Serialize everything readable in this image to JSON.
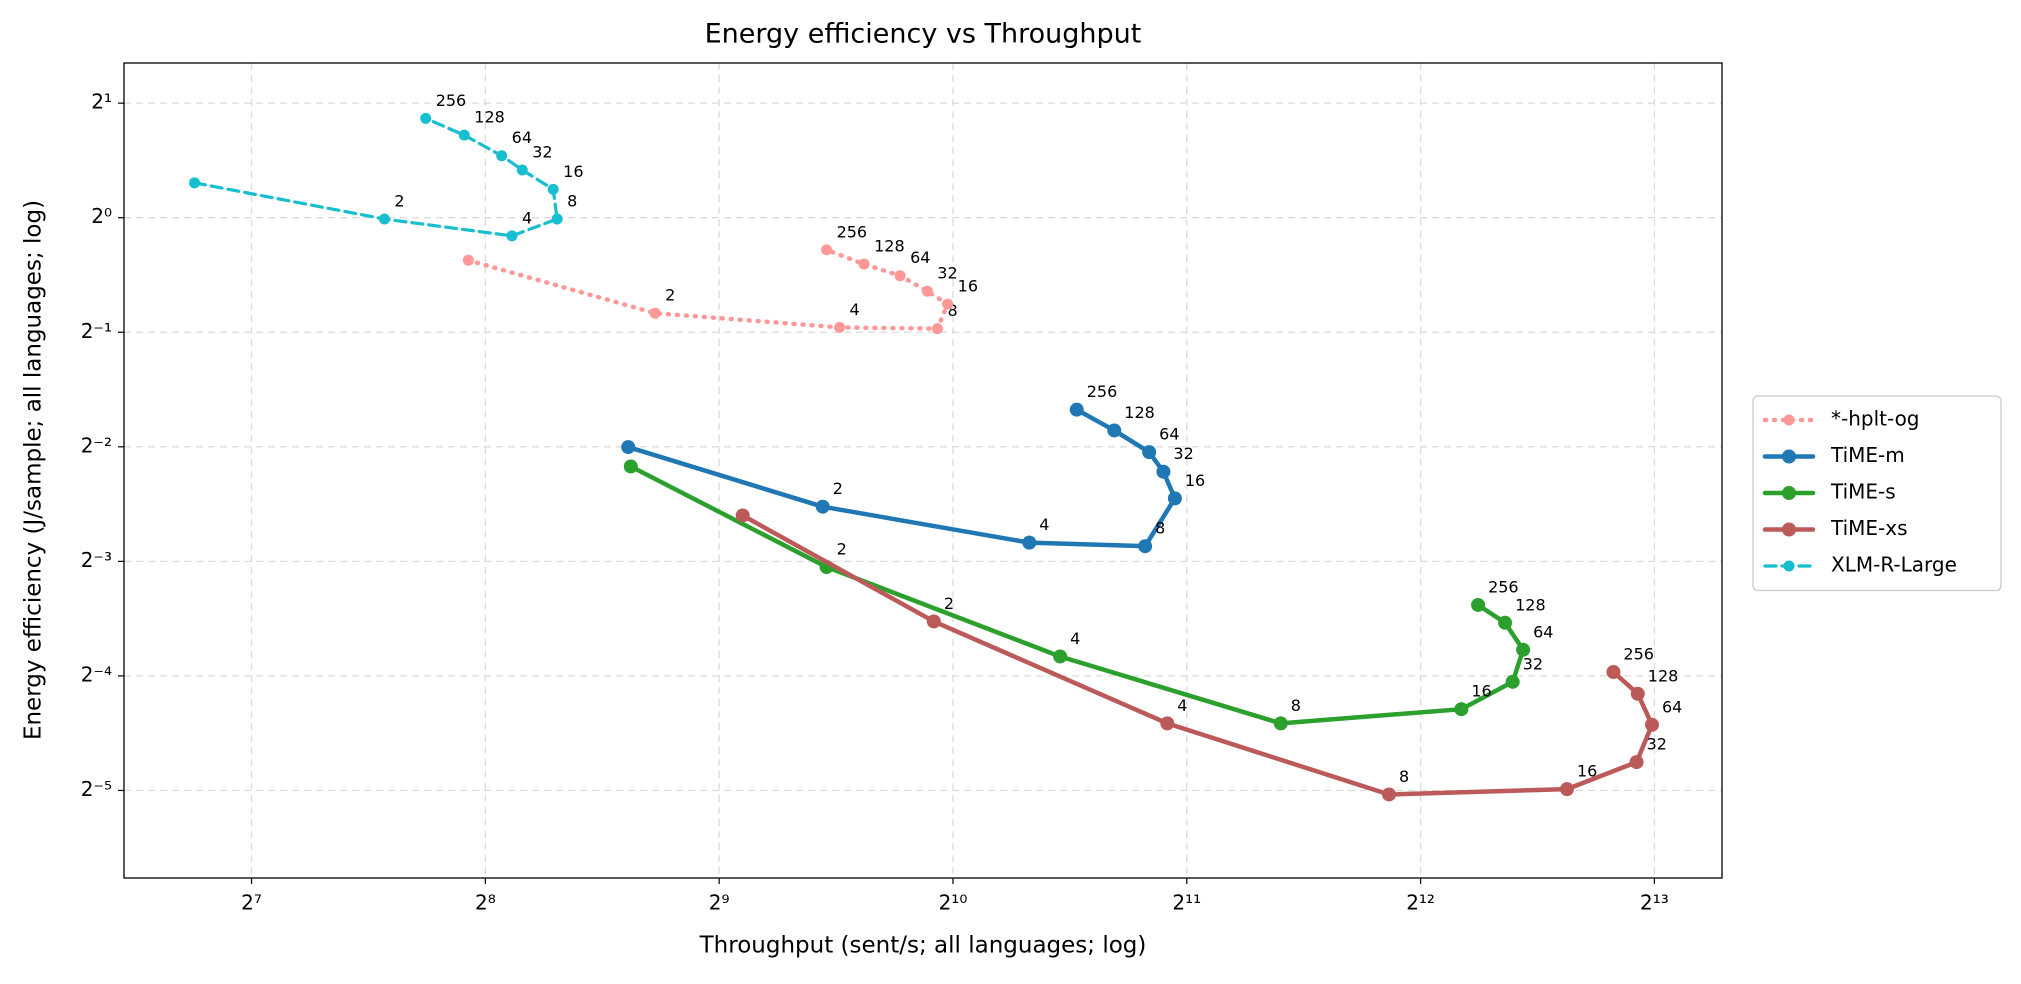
{
  "chart_data": {
    "type": "line",
    "title": "Energy efficiency vs Throughput",
    "x_label": "Throughput (sent/s; all languages; log)",
    "y_label": "Energy efficiency (J/sample; all languages; log)",
    "xscale": "log",
    "yscale": "log",
    "log_base": 2,
    "grid": true,
    "legend": "right",
    "xlim": [
      87.7,
      10010
    ],
    "ylim": [
      0.0184,
      2.55
    ],
    "xticks": [
      {
        "value": 128,
        "label": "2⁷"
      },
      {
        "value": 256,
        "label": "2⁸"
      },
      {
        "value": 512,
        "label": "2⁹"
      },
      {
        "value": 1024,
        "label": "2¹⁰"
      },
      {
        "value": 2048,
        "label": "2¹¹"
      },
      {
        "value": 4096,
        "label": "2¹²"
      },
      {
        "value": 8192,
        "label": "2¹³"
      }
    ],
    "yticks": [
      {
        "value": 2,
        "label": "2¹"
      },
      {
        "value": 1,
        "label": "2⁰"
      },
      {
        "value": 0.5,
        "label": "2⁻¹"
      },
      {
        "value": 0.25,
        "label": "2⁻²"
      },
      {
        "value": 0.125,
        "label": "2⁻³"
      },
      {
        "value": 0.0625,
        "label": "2⁻⁴"
      },
      {
        "value": 0.03125,
        "label": "2⁻⁵"
      }
    ],
    "series": [
      {
        "name": "*-hplt-og",
        "color": "#ff9896",
        "linestyle": "dotted",
        "x": [
          243.4,
          423.5,
          731.6,
          978,
          1008,
          949,
          875.5,
          786.8,
          704
        ],
        "values": [
          0.773,
          0.561,
          0.515,
          0.511,
          0.593,
          0.641,
          0.704,
          0.755,
          0.823
        ],
        "point_labels": [
          null,
          "2",
          "4",
          "8",
          "16",
          "32",
          "64",
          "128",
          "256"
        ]
      },
      {
        "name": "TiME-m",
        "color": "#1f77b4",
        "linestyle": "solid",
        "x": [
          391,
          696,
          1284,
          1810,
          1977,
          1911,
          1832,
          1652,
          1478
        ],
        "values": [
          0.2496,
          0.174,
          0.14,
          0.137,
          0.183,
          0.215,
          0.242,
          0.276,
          0.313
        ],
        "point_labels": [
          null,
          "2",
          "4",
          "8",
          "16",
          "32",
          "64",
          "128",
          "256"
        ]
      },
      {
        "name": "TiME-s",
        "color": "#2ca02c",
        "linestyle": "solid",
        "x": [
          394,
          704,
          1407,
          2706,
          4622,
          5382,
          5551,
          5262,
          4857
        ],
        "values": [
          0.222,
          0.1208,
          0.0703,
          0.0469,
          0.0511,
          0.0603,
          0.0732,
          0.0862,
          0.096
        ],
        "point_labels": [
          null,
          "2",
          "4",
          "8",
          "16",
          "32",
          "64",
          "128",
          "256"
        ]
      },
      {
        "name": "TiME-xs",
        "color": "#bc5a5a",
        "linestyle": "solid",
        "x": [
          549,
          967.5,
          1933,
          3730,
          6322,
          7771,
          8134,
          7798,
          7255
        ],
        "values": [
          0.165,
          0.0869,
          0.0469,
          0.0305,
          0.0315,
          0.0371,
          0.0465,
          0.0561,
          0.064
        ],
        "point_labels": [
          null,
          "2",
          "4",
          "8",
          "16",
          "32",
          "64",
          "128",
          "256"
        ]
      },
      {
        "name": "XLM-R-Large",
        "color": "#17becf",
        "linestyle": "dashed",
        "x": [
          108.1,
          189.8,
          277,
          316.7,
          313,
          285.6,
          268.7,
          240.5,
          214.5
        ],
        "values": [
          1.235,
          0.992,
          0.896,
          0.992,
          1.187,
          1.335,
          1.455,
          1.648,
          1.824
        ],
        "point_labels": [
          null,
          "2",
          "4",
          "8",
          "16",
          "32",
          "64",
          "128",
          "256"
        ]
      }
    ]
  }
}
